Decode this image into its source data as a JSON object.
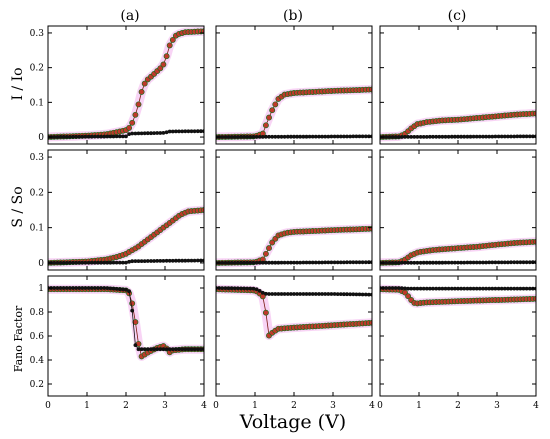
{
  "chart_data": {
    "type": "scatter",
    "grid": false,
    "columns": [
      "(a)",
      "(b)",
      "(c)"
    ],
    "row_labels": [
      "I / Io",
      "S / So",
      "Fano Factor"
    ],
    "xlabel": "Voltage (V)",
    "xlim": [
      0,
      4
    ],
    "x_ticks": [
      0,
      1,
      2,
      3,
      4
    ],
    "rows": [
      {
        "ylim": [
          -0.02,
          0.32
        ],
        "y_ticks": [
          0,
          0.1,
          0.2,
          0.3
        ],
        "y_tick_labels": [
          "0",
          "0.1",
          "0.2",
          "0.3"
        ]
      },
      {
        "ylim": [
          -0.02,
          0.32
        ],
        "y_ticks": [
          0,
          0.1,
          0.2,
          0.3
        ],
        "y_tick_labels": [
          "0",
          "0.1",
          "0.2",
          "0.3"
        ]
      },
      {
        "ylim": [
          0.1,
          1.1
        ],
        "y_ticks": [
          0.2,
          0.4,
          0.6,
          0.8,
          1.0
        ],
        "y_tick_labels": [
          "0.2",
          "0.4",
          "0.6",
          "0.8",
          "1"
        ]
      }
    ],
    "series_colors": {
      "black": "#111111",
      "red": "#c0392b",
      "red_outline": "#1e6b1e",
      "pink_band": "#f4b8ee"
    },
    "panels": [
      {
        "row": 0,
        "col": 0,
        "red_band": true,
        "black": [
          [
            0,
            0
          ],
          [
            2.0,
            0.002
          ],
          [
            2.1,
            0.01
          ],
          [
            3.0,
            0.012
          ],
          [
            3.1,
            0.016
          ],
          [
            4.0,
            0.017
          ]
        ],
        "red": [
          [
            0,
            0
          ],
          [
            1.0,
            0.004
          ],
          [
            1.5,
            0.008
          ],
          [
            1.8,
            0.015
          ],
          [
            2.0,
            0.02
          ],
          [
            2.1,
            0.028
          ],
          [
            2.2,
            0.05
          ],
          [
            2.3,
            0.085
          ],
          [
            2.4,
            0.13
          ],
          [
            2.5,
            0.16
          ],
          [
            2.7,
            0.18
          ],
          [
            2.9,
            0.2
          ],
          [
            3.0,
            0.215
          ],
          [
            3.1,
            0.26
          ],
          [
            3.2,
            0.28
          ],
          [
            3.3,
            0.295
          ],
          [
            3.5,
            0.302
          ],
          [
            4.0,
            0.305
          ]
        ]
      },
      {
        "row": 0,
        "col": 1,
        "red_band": true,
        "black": [
          [
            0,
            0
          ],
          [
            4.0,
            0.002
          ]
        ],
        "red": [
          [
            0,
            0
          ],
          [
            1.0,
            0.002
          ],
          [
            1.2,
            0.01
          ],
          [
            1.3,
            0.04
          ],
          [
            1.45,
            0.08
          ],
          [
            1.6,
            0.11
          ],
          [
            1.75,
            0.122
          ],
          [
            2.0,
            0.127
          ],
          [
            3.0,
            0.133
          ],
          [
            4.0,
            0.137
          ]
        ]
      },
      {
        "row": 0,
        "col": 2,
        "red_band": true,
        "black": [
          [
            0,
            0
          ],
          [
            4.0,
            0.002
          ]
        ],
        "red": [
          [
            0,
            0
          ],
          [
            0.5,
            0.002
          ],
          [
            0.65,
            0.01
          ],
          [
            0.8,
            0.025
          ],
          [
            0.95,
            0.037
          ],
          [
            1.2,
            0.043
          ],
          [
            1.6,
            0.048
          ],
          [
            2.0,
            0.05
          ],
          [
            2.5,
            0.055
          ],
          [
            3.0,
            0.06
          ],
          [
            3.5,
            0.065
          ],
          [
            4.0,
            0.068
          ]
        ]
      },
      {
        "row": 1,
        "col": 0,
        "red_band": true,
        "black": [
          [
            0,
            0
          ],
          [
            2.0,
            0.001
          ],
          [
            2.15,
            0.005
          ],
          [
            4.0,
            0.007
          ]
        ],
        "red": [
          [
            0,
            0
          ],
          [
            1.0,
            0.004
          ],
          [
            1.5,
            0.01
          ],
          [
            1.8,
            0.018
          ],
          [
            2.0,
            0.026
          ],
          [
            2.3,
            0.045
          ],
          [
            2.6,
            0.07
          ],
          [
            2.9,
            0.095
          ],
          [
            3.2,
            0.12
          ],
          [
            3.4,
            0.137
          ],
          [
            3.6,
            0.146
          ],
          [
            4.0,
            0.15
          ]
        ]
      },
      {
        "row": 1,
        "col": 1,
        "red_band": true,
        "black": [
          [
            0,
            0
          ],
          [
            4.0,
            0.002
          ]
        ],
        "red": [
          [
            0,
            0
          ],
          [
            1.0,
            0.002
          ],
          [
            1.2,
            0.01
          ],
          [
            1.3,
            0.03
          ],
          [
            1.45,
            0.06
          ],
          [
            1.6,
            0.078
          ],
          [
            1.8,
            0.085
          ],
          [
            2.0,
            0.088
          ],
          [
            3.0,
            0.093
          ],
          [
            4.0,
            0.097
          ]
        ]
      },
      {
        "row": 1,
        "col": 2,
        "red_band": true,
        "black": [
          [
            0,
            0
          ],
          [
            4.0,
            0.002
          ]
        ],
        "red": [
          [
            0,
            0
          ],
          [
            0.5,
            0.002
          ],
          [
            0.65,
            0.01
          ],
          [
            0.8,
            0.022
          ],
          [
            1.0,
            0.031
          ],
          [
            1.4,
            0.037
          ],
          [
            2.0,
            0.042
          ],
          [
            2.5,
            0.046
          ],
          [
            3.0,
            0.052
          ],
          [
            3.5,
            0.057
          ],
          [
            4.0,
            0.06
          ]
        ]
      },
      {
        "row": 2,
        "col": 0,
        "red_band": true,
        "black": [
          [
            0,
            1.0
          ],
          [
            1.5,
            1.0
          ],
          [
            2.0,
            0.985
          ],
          [
            2.1,
            0.97
          ],
          [
            2.15,
            0.85
          ],
          [
            2.2,
            0.66
          ],
          [
            2.25,
            0.49
          ],
          [
            2.3,
            0.49
          ],
          [
            3.0,
            0.49
          ],
          [
            4.0,
            0.49
          ]
        ],
        "red": [
          [
            0,
            0.99
          ],
          [
            1.5,
            0.99
          ],
          [
            2.0,
            0.98
          ],
          [
            2.1,
            0.95
          ],
          [
            2.2,
            0.82
          ],
          [
            2.3,
            0.56
          ],
          [
            2.4,
            0.43
          ],
          [
            2.6,
            0.47
          ],
          [
            2.8,
            0.5
          ],
          [
            3.0,
            0.52
          ],
          [
            3.1,
            0.46
          ],
          [
            3.2,
            0.48
          ],
          [
            3.5,
            0.49
          ],
          [
            4.0,
            0.49
          ]
        ]
      },
      {
        "row": 2,
        "col": 1,
        "red_band": true,
        "black": [
          [
            0,
            1.0
          ],
          [
            1.0,
            0.995
          ],
          [
            1.1,
            0.98
          ],
          [
            1.2,
            0.96
          ],
          [
            1.3,
            0.95
          ],
          [
            2.0,
            0.95
          ],
          [
            3.0,
            0.95
          ],
          [
            4.0,
            0.945
          ]
        ],
        "red": [
          [
            0,
            0.99
          ],
          [
            1.0,
            0.98
          ],
          [
            1.1,
            0.96
          ],
          [
            1.2,
            0.93
          ],
          [
            1.3,
            0.76
          ],
          [
            1.35,
            0.6
          ],
          [
            1.45,
            0.63
          ],
          [
            1.6,
            0.66
          ],
          [
            2.0,
            0.67
          ],
          [
            3.0,
            0.69
          ],
          [
            4.0,
            0.71
          ]
        ]
      },
      {
        "row": 2,
        "col": 2,
        "red_band": true,
        "black": [
          [
            0,
            1.0
          ],
          [
            0.5,
            1.0
          ],
          [
            0.7,
            0.995
          ],
          [
            1.0,
            0.995
          ],
          [
            2.0,
            0.995
          ],
          [
            3.0,
            0.995
          ],
          [
            4.0,
            0.995
          ]
        ],
        "red": [
          [
            0,
            0.99
          ],
          [
            0.5,
            0.985
          ],
          [
            0.65,
            0.96
          ],
          [
            0.8,
            0.9
          ],
          [
            0.9,
            0.87
          ],
          [
            1.2,
            0.88
          ],
          [
            2.0,
            0.89
          ],
          [
            3.0,
            0.9
          ],
          [
            4.0,
            0.91
          ]
        ]
      }
    ]
  }
}
